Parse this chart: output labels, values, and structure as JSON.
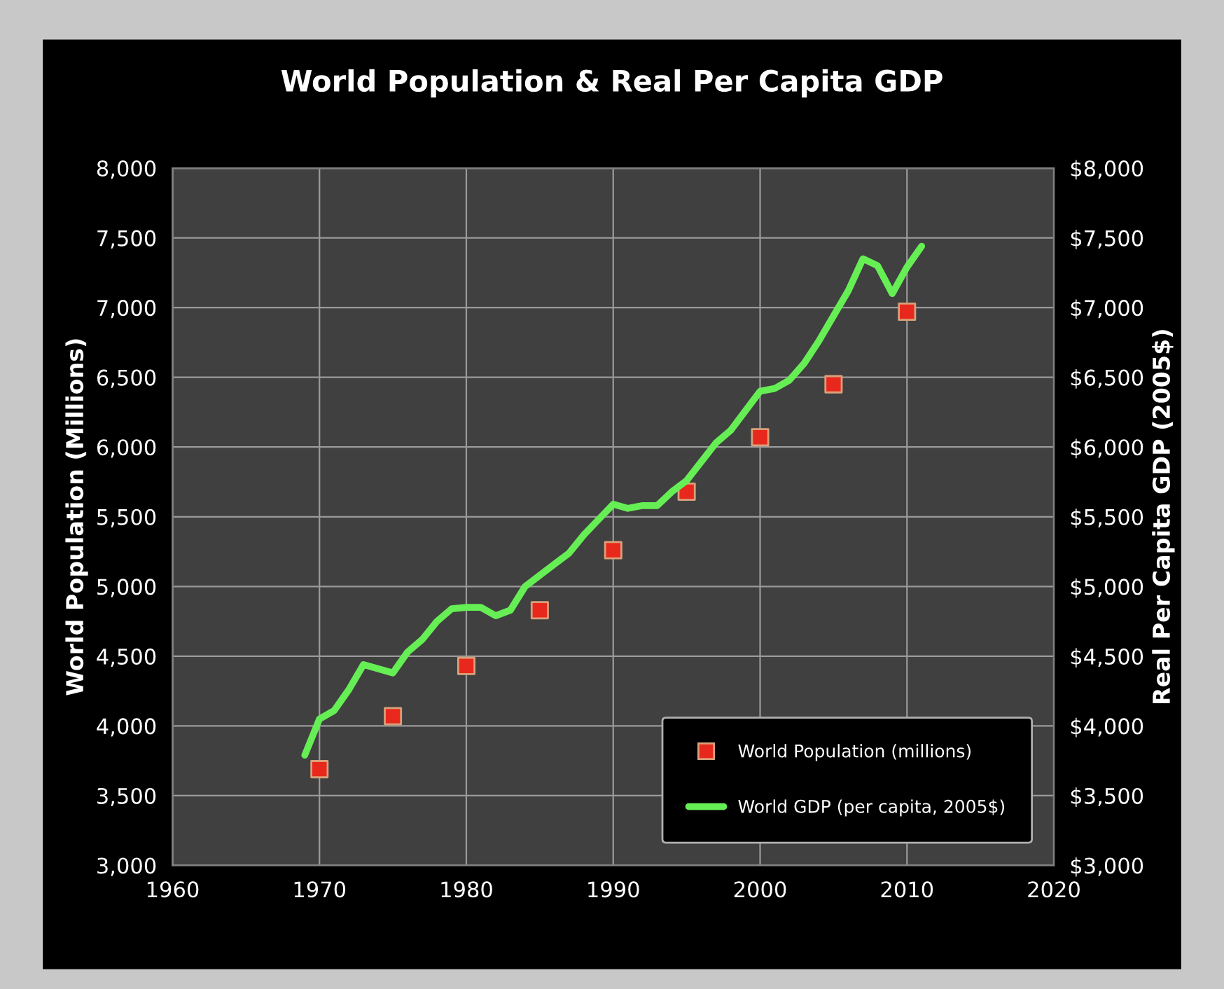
{
  "chart_data": {
    "type": "line",
    "title": "World Population & Real Per Capita GDP",
    "ylabel": "World Population (Millions)",
    "y2label": "Real Per Capita GDP (2005$)",
    "xlim": [
      1960,
      2020
    ],
    "xticks": [
      1960,
      1970,
      1980,
      1990,
      2000,
      2010,
      2020
    ],
    "ylim": [
      3000,
      8000
    ],
    "yticks": [
      {
        "value": 3000,
        "label": "3,000"
      },
      {
        "value": 3500,
        "label": "3,500"
      },
      {
        "value": 4000,
        "label": "4,000"
      },
      {
        "value": 4500,
        "label": "4,500"
      },
      {
        "value": 5000,
        "label": "5,000"
      },
      {
        "value": 5500,
        "label": "5,500"
      },
      {
        "value": 6000,
        "label": "6,000"
      },
      {
        "value": 6500,
        "label": "6,500"
      },
      {
        "value": 7000,
        "label": "7,000"
      },
      {
        "value": 7500,
        "label": "7,500"
      },
      {
        "value": 8000,
        "label": "8,000"
      }
    ],
    "y2lim": [
      3000,
      8000
    ],
    "y2ticks": [
      {
        "value": 3000,
        "label": "$3,000"
      },
      {
        "value": 3500,
        "label": "$3,500"
      },
      {
        "value": 4000,
        "label": "$4,000"
      },
      {
        "value": 4500,
        "label": "$4,500"
      },
      {
        "value": 5000,
        "label": "$5,000"
      },
      {
        "value": 5500,
        "label": "$5,500"
      },
      {
        "value": 6000,
        "label": "$6,000"
      },
      {
        "value": 6500,
        "label": "$6,500"
      },
      {
        "value": 7000,
        "label": "$7,000"
      },
      {
        "value": 7500,
        "label": "$7,500"
      },
      {
        "value": 8000,
        "label": "$8,000"
      }
    ],
    "grid": true,
    "legend": "bottom right",
    "series": [
      {
        "name": "World Population (millions)",
        "type": "scatter",
        "marker": "square",
        "color": "#e8281c",
        "x": [
          1970,
          1975,
          1980,
          1985,
          1990,
          1995,
          2000,
          2005,
          2010
        ],
        "values": [
          3690,
          4070,
          4430,
          4830,
          5260,
          5680,
          6070,
          6450,
          6970
        ]
      },
      {
        "name": "World GDP (per capita, 2005$)",
        "axis": "y2",
        "marker": "none",
        "line_style": "solid",
        "color": "#66ee55",
        "x": [
          1969,
          1970,
          1971,
          1972,
          1973,
          1975,
          1976,
          1977,
          1978,
          1979,
          1980,
          1981,
          1982,
          1983,
          1984,
          1985,
          1986,
          1987,
          1988,
          1989,
          1990,
          1991,
          1992,
          1993,
          1994,
          1995,
          1997,
          1998,
          1999,
          2000,
          2001,
          2002,
          2003,
          2004,
          2005,
          2006,
          2007,
          2008,
          2009,
          2010,
          2011
        ],
        "values": [
          3790,
          4050,
          4110,
          4260,
          4440,
          4380,
          4530,
          4620,
          4750,
          4840,
          4850,
          4850,
          4790,
          4830,
          5000,
          5080,
          5160,
          5240,
          5370,
          5480,
          5590,
          5560,
          5580,
          5580,
          5680,
          5760,
          6030,
          6120,
          6260,
          6400,
          6420,
          6480,
          6600,
          6760,
          6940,
          7120,
          7350,
          7300,
          7100,
          7290,
          7440
        ]
      }
    ]
  }
}
